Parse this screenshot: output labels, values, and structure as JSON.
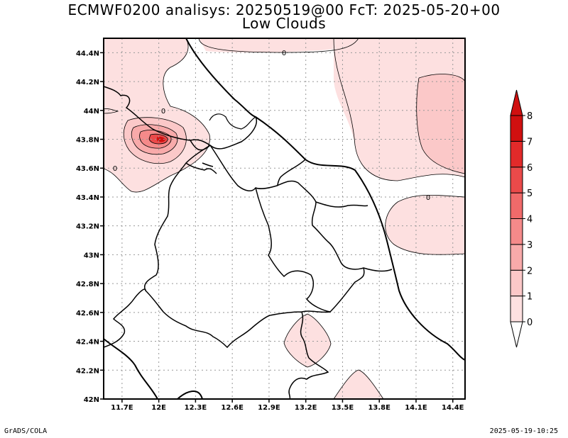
{
  "title": {
    "line1": "ECMWF0200 analisys: 20250519@00 FcT: 2025-05-20+00",
    "line2": "Low Clouds"
  },
  "footer": {
    "left": "GrADS/COLA",
    "right": "2025-05-19-10:25"
  },
  "chart_data": {
    "type": "contour-map",
    "variable": "Low Clouds",
    "x_ticks": [
      "11.7E",
      "12E",
      "12.3E",
      "12.6E",
      "12.9E",
      "13.2E",
      "13.5E",
      "13.8E",
      "14.1E",
      "14.4E"
    ],
    "x_tick_values": [
      11.7,
      12.0,
      12.3,
      12.6,
      12.9,
      13.2,
      13.5,
      13.8,
      14.1,
      14.4
    ],
    "y_ticks": [
      "42N",
      "42.2N",
      "42.4N",
      "42.6N",
      "42.8N",
      "43N",
      "43.2N",
      "43.4N",
      "43.6N",
      "43.8N",
      "44N",
      "44.2N",
      "44.4N"
    ],
    "y_tick_values": [
      42.0,
      42.2,
      42.4,
      42.6,
      42.8,
      43.0,
      43.2,
      43.4,
      43.6,
      43.8,
      44.0,
      44.2,
      44.4
    ],
    "lon_range": [
      11.55,
      14.5
    ],
    "lat_range": [
      42.0,
      44.5
    ],
    "grid": true,
    "contour_labels": [
      "0",
      "0",
      "0",
      "0"
    ],
    "colorbar": {
      "levels": [
        "0",
        "1",
        "2",
        "3",
        "4",
        "5",
        "6",
        "7",
        "8"
      ],
      "colors": [
        "#ffffff",
        "#fde0e0",
        "#fbc8c8",
        "#f8aaaa",
        "#f58a8a",
        "#f06a6a",
        "#ea4a4a",
        "#e22a2a",
        "#d01010"
      ]
    }
  }
}
